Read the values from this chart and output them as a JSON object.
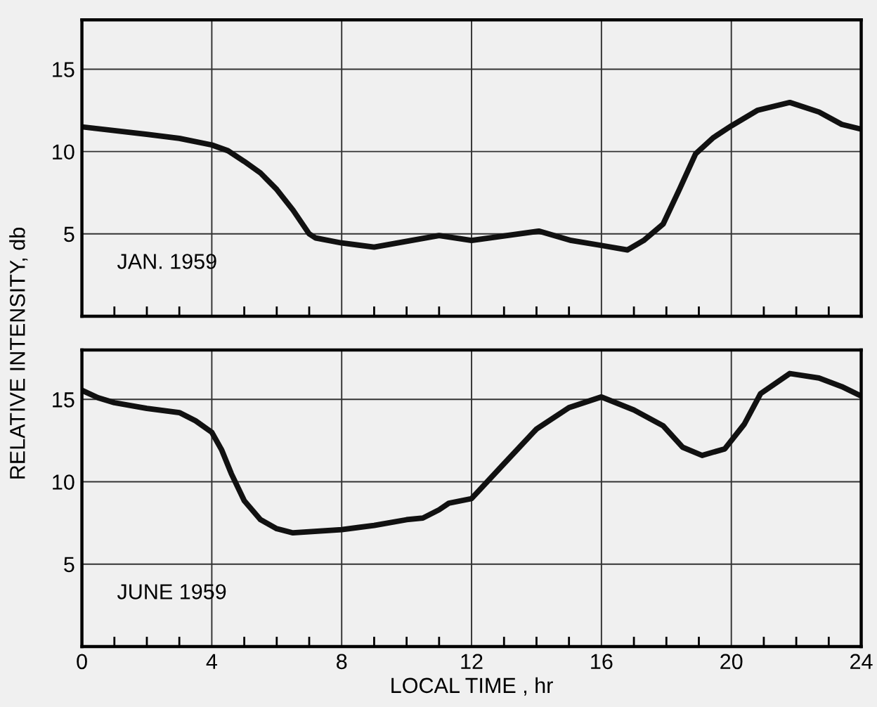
{
  "chart_data": [
    {
      "type": "line",
      "ylabel": "RELATIVE INTENSITY, db",
      "annotations": [
        "JAN. 1959"
      ],
      "xlim": [
        0,
        24
      ],
      "ylim": [
        0,
        18
      ],
      "yticks": [
        5,
        10,
        15
      ],
      "xticks": [
        0,
        {
          "value": 1,
          "label": null
        },
        {
          "value": 2,
          "label": null
        },
        {
          "value": 3,
          "label": null
        },
        4,
        {
          "value": 5,
          "label": null
        },
        {
          "value": 6,
          "label": null
        },
        {
          "value": 7,
          "label": null
        },
        8,
        {
          "value": 9,
          "label": null
        },
        {
          "value": 10,
          "label": null
        },
        {
          "value": 11,
          "label": null
        },
        12,
        {
          "value": 13,
          "label": null
        },
        {
          "value": 14,
          "label": null
        },
        {
          "value": 15,
          "label": null
        },
        16,
        {
          "value": 17,
          "label": null
        },
        {
          "value": 18,
          "label": null
        },
        {
          "value": 19,
          "label": null
        },
        20,
        {
          "value": 21,
          "label": null
        },
        {
          "value": 22,
          "label": null
        },
        {
          "value": 23,
          "label": null
        },
        24
      ],
      "tick_labels": "y",
      "grid": true,
      "marker": "none",
      "line_style": "solid",
      "series": [
        {
          "color": "#111111",
          "x": [
            0,
            2,
            3,
            4,
            4.5,
            5,
            5.5,
            6,
            6.5,
            7,
            7.2,
            8,
            9,
            10,
            11,
            12,
            14.07,
            15.07,
            16,
            16.8,
            17.3,
            17.9,
            18.4,
            18.9,
            19.45,
            20,
            20.8,
            21.8,
            22.7,
            23.4,
            24
          ],
          "values": [
            11.5,
            11.05,
            10.8,
            10.4,
            10.05,
            9.4,
            8.7,
            7.7,
            6.45,
            5.0,
            4.75,
            4.45,
            4.2,
            4.55,
            4.9,
            4.6,
            5.17,
            4.6,
            4.3,
            4.03,
            4.6,
            5.6,
            7.7,
            9.86,
            10.85,
            11.56,
            12.5,
            12.98,
            12.4,
            11.65,
            11.36
          ]
        }
      ]
    },
    {
      "type": "line",
      "xlabel": "LOCAL TIME , hr",
      "annotations": [
        "JUNE 1959"
      ],
      "xlim": [
        0,
        24
      ],
      "ylim": [
        0,
        18
      ],
      "yticks": [
        5,
        10,
        15
      ],
      "xticks": [
        0,
        {
          "value": 1,
          "label": null
        },
        {
          "value": 2,
          "label": null
        },
        {
          "value": 3,
          "label": null
        },
        4,
        {
          "value": 5,
          "label": null
        },
        {
          "value": 6,
          "label": null
        },
        {
          "value": 7,
          "label": null
        },
        8,
        {
          "value": 9,
          "label": null
        },
        {
          "value": 10,
          "label": null
        },
        {
          "value": 11,
          "label": null
        },
        12,
        {
          "value": 13,
          "label": null
        },
        {
          "value": 14,
          "label": null
        },
        {
          "value": 15,
          "label": null
        },
        16,
        {
          "value": 17,
          "label": null
        },
        {
          "value": 18,
          "label": null
        },
        {
          "value": 19,
          "label": null
        },
        20,
        {
          "value": 21,
          "label": null
        },
        {
          "value": 22,
          "label": null
        },
        {
          "value": 23,
          "label": null
        },
        24
      ],
      "grid": true,
      "marker": "none",
      "line_style": "solid",
      "series": [
        {
          "color": "#111111",
          "x": [
            0,
            0.5,
            1,
            2,
            3,
            3.5,
            4,
            4.3,
            4.6,
            5,
            5.5,
            6,
            6.5,
            8,
            9,
            10,
            10.5,
            11,
            11.3,
            12,
            13,
            14,
            15,
            16,
            17,
            17.9,
            18.5,
            19.1,
            19.8,
            20.4,
            20.9,
            21.8,
            22.7,
            23.4,
            24
          ],
          "values": [
            15.55,
            15.1,
            14.8,
            14.45,
            14.2,
            13.7,
            13.0,
            11.95,
            10.5,
            8.85,
            7.7,
            7.15,
            6.9,
            7.1,
            7.35,
            7.7,
            7.8,
            8.3,
            8.7,
            8.98,
            11.1,
            13.2,
            14.5,
            15.15,
            14.36,
            13.4,
            12.1,
            11.6,
            12.0,
            13.5,
            15.35,
            16.57,
            16.3,
            15.78,
            15.2
          ]
        }
      ]
    }
  ]
}
